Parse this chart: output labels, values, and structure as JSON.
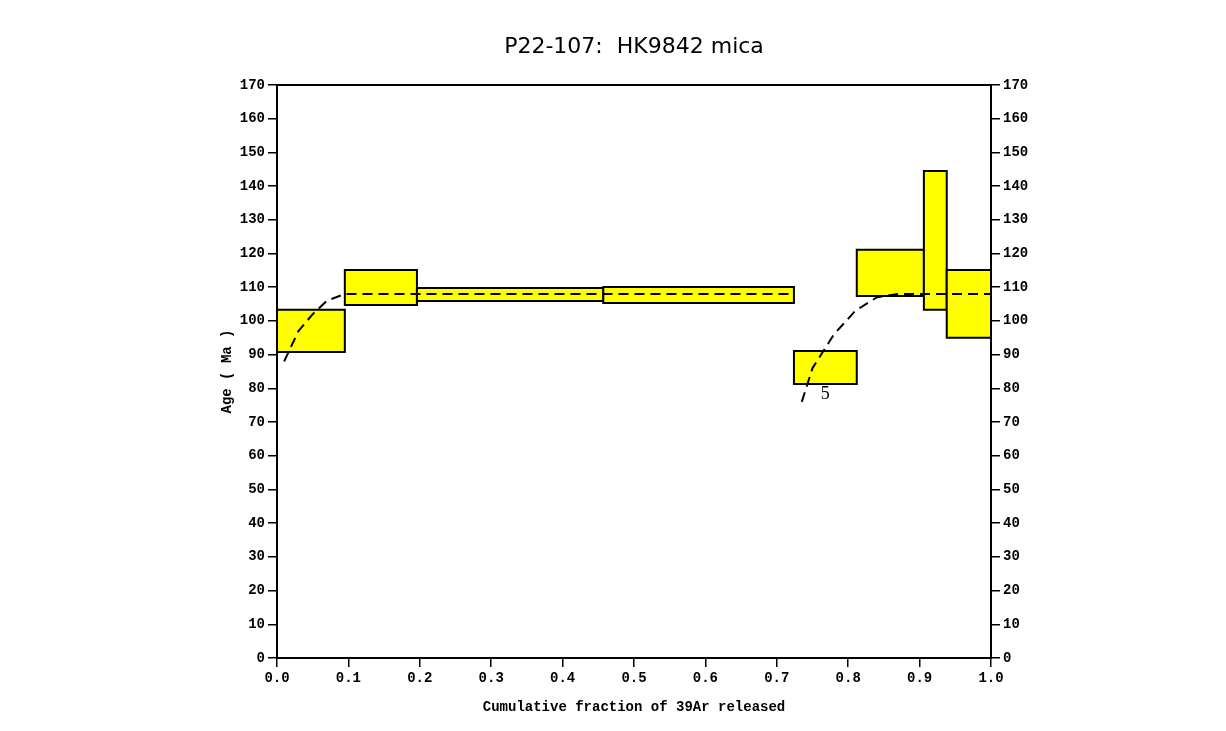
{
  "chart_data": {
    "type": "line",
    "title": "P22-107:  HK9842 mica",
    "xlabel": "Cumulative fraction of 39Ar released",
    "ylabel": "Age ( Ma )",
    "xlim": [
      0,
      1
    ],
    "xticks": [
      {
        "value": 0,
        "label": "0.0"
      },
      0.1,
      0.2,
      0.3,
      0.4,
      0.5,
      0.6,
      0.7,
      0.8,
      0.9,
      {
        "value": 1,
        "label": "1.0"
      }
    ],
    "ylim": [
      0,
      170
    ],
    "yticks": [
      0,
      10,
      20,
      30,
      40,
      50,
      60,
      70,
      80,
      90,
      100,
      110,
      120,
      130,
      140,
      150,
      160,
      170
    ],
    "y2lim": [
      0,
      170
    ],
    "y2ticks": [
      0,
      10,
      20,
      30,
      40,
      50,
      60,
      70,
      80,
      90,
      100,
      110,
      120,
      130,
      140,
      150,
      160,
      170
    ],
    "grid": false,
    "legend": false,
    "series": [
      {
        "type": "bar",
        "color": "#ffff00",
        "x": [
          0.0475,
          0.1455,
          0.3265,
          0.5905,
          0.768,
          0.859,
          0.922,
          0.969
        ],
        "base": [
          90.8,
          104.7,
          105.9,
          105.3,
          81.3,
          107.4,
          103.3,
          95.0
        ],
        "values": [
          12.5,
          10.4,
          3.9,
          4.8,
          9.8,
          13.7,
          41.2,
          20.1
        ]
      },
      {
        "color": "#000000",
        "line_style": "dashed",
        "x": [
          0.01,
          0.03,
          0.05,
          0.07,
          0.095,
          0.724,
          0.73,
          0.735,
          0.75,
          0.78,
          0.81,
          0.84,
          0.87,
          1.0
        ],
        "values": [
          88,
          97,
          102,
          106,
          108,
          108,
          null,
          76,
          86,
          96,
          103,
          107,
          108,
          108
        ]
      }
    ],
    "annotations": [
      "5"
    ]
  }
}
